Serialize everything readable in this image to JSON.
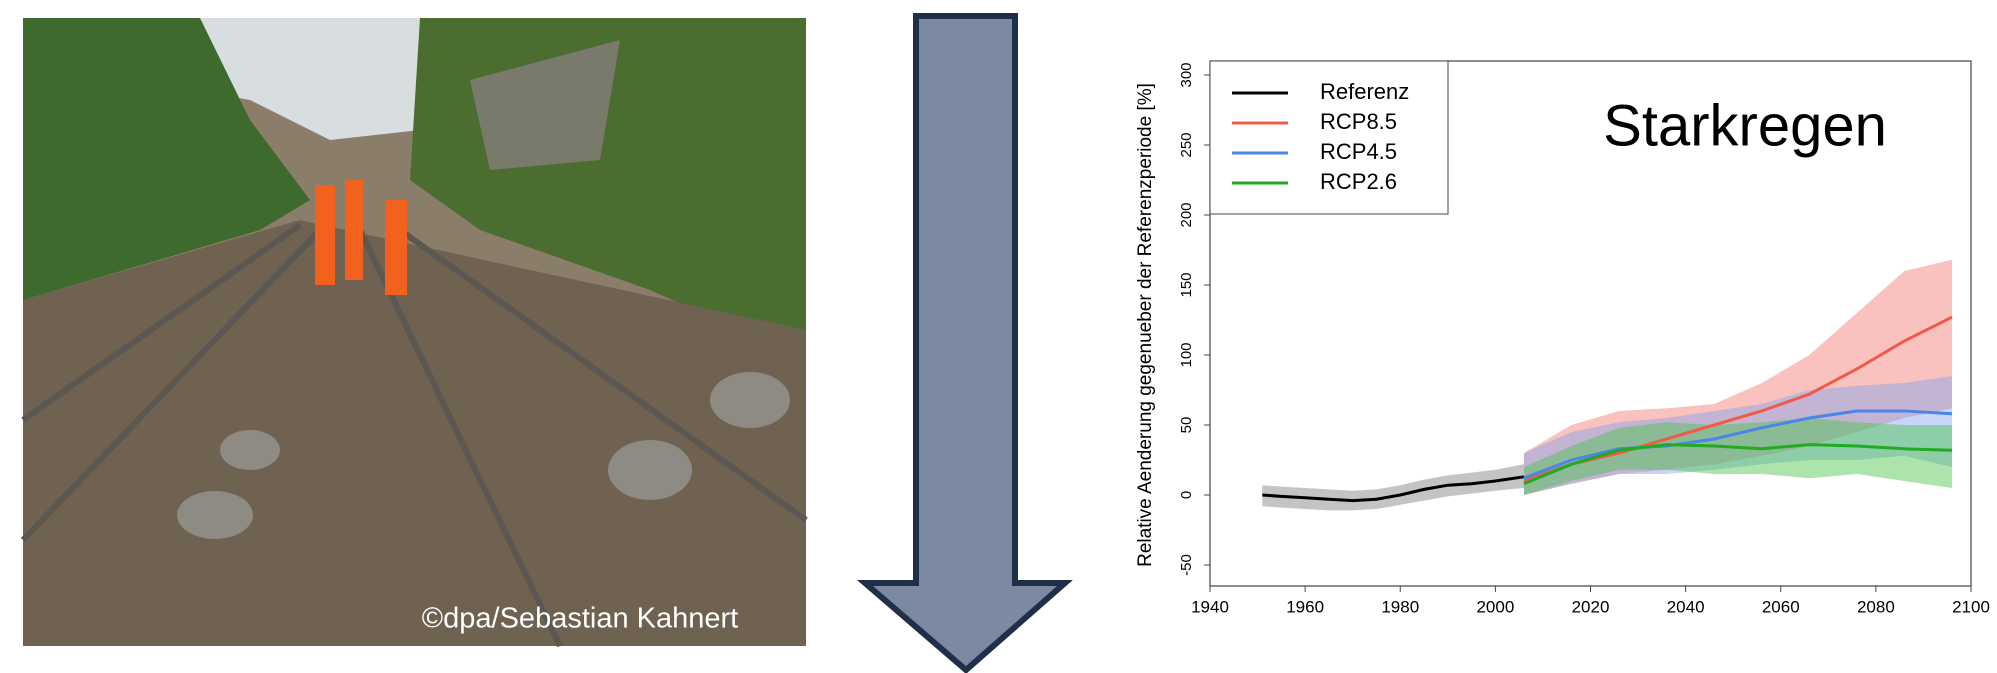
{
  "photo_credit": "©dpa/Sebastian Kahnert",
  "chart_data": {
    "type": "line",
    "title": "Starkregen",
    "y_label": "Relative Aenderung gegenueber der Referenzperiode [%]",
    "xlim": [
      1940,
      2100
    ],
    "xticks": [
      1940,
      1960,
      1980,
      2000,
      2020,
      2040,
      2060,
      2080,
      2100
    ],
    "ylim": [
      -65,
      310
    ],
    "yticks": [
      -50,
      0,
      50,
      100,
      150,
      200,
      250,
      300
    ],
    "legend": "upper left",
    "series": [
      {
        "name": "Referenz",
        "color": "#000000",
        "band_color": "#c4c4c4",
        "x": [
          1951,
          1955,
          1960,
          1965,
          1970,
          1975,
          1980,
          1985,
          1990,
          1995,
          2000,
          2006
        ],
        "values": [
          0,
          -1,
          -2,
          -3,
          -4,
          -3,
          0,
          4,
          7,
          8,
          10,
          13
        ],
        "lower": [
          -8,
          -9,
          -10,
          -11,
          -11,
          -10,
          -7,
          -4,
          -1,
          1,
          3,
          5
        ],
        "upper": [
          7,
          6,
          5,
          4,
          3,
          4,
          7,
          11,
          14,
          16,
          18,
          22
        ]
      },
      {
        "name": "RCP8.5",
        "color": "#f05a4a",
        "band_color": "rgba(245,120,110,0.45)",
        "x": [
          2006,
          2016,
          2026,
          2036,
          2046,
          2056,
          2066,
          2076,
          2086,
          2096
        ],
        "values": [
          10,
          22,
          30,
          40,
          50,
          60,
          72,
          90,
          110,
          127
        ],
        "lower": [
          0,
          8,
          15,
          18,
          22,
          28,
          35,
          45,
          55,
          62
        ],
        "upper": [
          30,
          50,
          60,
          62,
          65,
          80,
          100,
          130,
          160,
          168
        ]
      },
      {
        "name": "RCP4.5",
        "color": "#4a86e8",
        "band_color": "rgba(130,165,240,0.45)",
        "x": [
          2006,
          2016,
          2026,
          2036,
          2046,
          2056,
          2066,
          2076,
          2086,
          2096
        ],
        "values": [
          12,
          25,
          33,
          35,
          40,
          48,
          55,
          60,
          60,
          58
        ],
        "lower": [
          0,
          8,
          15,
          15,
          18,
          22,
          25,
          25,
          28,
          20
        ],
        "upper": [
          30,
          45,
          52,
          55,
          60,
          65,
          75,
          78,
          80,
          85
        ]
      },
      {
        "name": "RCP2.6",
        "color": "#22aa22",
        "band_color": "rgba(70,195,70,0.45)",
        "x": [
          2006,
          2016,
          2026,
          2036,
          2046,
          2056,
          2066,
          2076,
          2086,
          2096
        ],
        "values": [
          8,
          22,
          32,
          36,
          35,
          33,
          36,
          35,
          33,
          32
        ],
        "lower": [
          0,
          10,
          18,
          18,
          15,
          15,
          12,
          15,
          10,
          5
        ],
        "upper": [
          20,
          35,
          48,
          52,
          50,
          52,
          55,
          52,
          50,
          50
        ]
      }
    ]
  }
}
